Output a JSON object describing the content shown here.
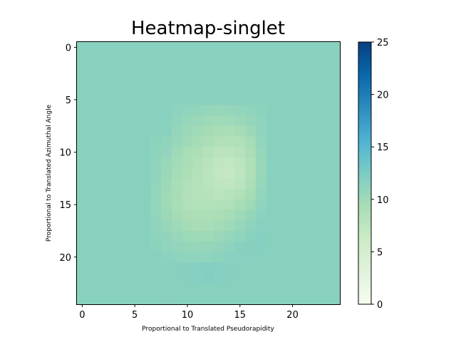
{
  "chart_data": {
    "type": "heatmap",
    "title": "Heatmap-singlet",
    "xlabel": "Proportional to Translated Pseudorapidity",
    "ylabel": "Proportional to Translated Azimuthal Angle",
    "colormap": "GnBu",
    "nx": 25,
    "ny": 25,
    "xlim": [
      -0.5,
      24.5
    ],
    "ylim": [
      24.5,
      -0.5
    ],
    "x_ticks": [
      0,
      5,
      10,
      15,
      20
    ],
    "y_ticks": [
      0,
      5,
      10,
      15,
      20
    ],
    "colorbar": {
      "min": 0,
      "max": 25,
      "ticks": [
        0,
        5,
        10,
        15,
        20,
        25
      ]
    },
    "background_value": 11.5,
    "cells": [
      {
        "row": 6,
        "cols": [
          9,
          10,
          11,
          12,
          13,
          14,
          15,
          16,
          17
        ],
        "values": [
          11.2,
          11.0,
          10.8,
          10.7,
          10.6,
          10.7,
          10.9,
          11.1,
          11.3
        ]
      },
      {
        "row": 7,
        "cols": [
          9,
          10,
          11,
          12,
          13,
          14,
          15,
          16,
          17
        ],
        "values": [
          11.0,
          10.6,
          10.3,
          10.1,
          9.9,
          10.0,
          10.3,
          10.7,
          11.1
        ]
      },
      {
        "row": 8,
        "cols": [
          9,
          10,
          11,
          12,
          13,
          14,
          15,
          16,
          17
        ],
        "values": [
          10.7,
          10.3,
          9.9,
          9.6,
          9.3,
          9.2,
          9.6,
          10.2,
          11.0
        ]
      },
      {
        "row": 9,
        "cols": [
          7,
          8,
          9,
          10,
          11,
          12,
          13,
          14,
          15,
          16,
          17
        ],
        "values": [
          11.3,
          11.1,
          10.5,
          10.0,
          9.5,
          9.0,
          8.6,
          8.5,
          8.8,
          9.5,
          10.8
        ]
      },
      {
        "row": 10,
        "cols": [
          7,
          8,
          9,
          10,
          11,
          12,
          13,
          14,
          15,
          16,
          17
        ],
        "values": [
          11.2,
          10.8,
          10.1,
          9.4,
          8.9,
          8.4,
          7.9,
          7.8,
          8.2,
          9.1,
          10.6
        ]
      },
      {
        "row": 11,
        "cols": [
          7,
          8,
          9,
          10,
          11,
          12,
          13,
          14,
          15,
          16,
          17
        ],
        "values": [
          11.1,
          10.5,
          9.8,
          9.1,
          8.6,
          8.0,
          7.3,
          7.2,
          7.7,
          8.8,
          10.5
        ]
      },
      {
        "row": 12,
        "cols": [
          7,
          8,
          9,
          10,
          11,
          12,
          13,
          14,
          15,
          16,
          17
        ],
        "values": [
          11.0,
          10.3,
          9.6,
          8.9,
          8.4,
          7.8,
          7.0,
          6.9,
          7.5,
          8.7,
          10.4
        ]
      },
      {
        "row": 13,
        "cols": [
          7,
          8,
          9,
          10,
          11,
          12,
          13,
          14,
          15,
          16,
          17
        ],
        "values": [
          10.9,
          10.2,
          9.4,
          8.7,
          8.2,
          7.9,
          7.3,
          7.4,
          7.9,
          9.0,
          10.6
        ]
      },
      {
        "row": 14,
        "cols": [
          7,
          8,
          9,
          10,
          11,
          12,
          13,
          14,
          15,
          16,
          17
        ],
        "values": [
          10.8,
          10.1,
          9.3,
          8.6,
          8.2,
          8.1,
          7.9,
          8.1,
          8.6,
          9.5,
          10.8
        ]
      },
      {
        "row": 15,
        "cols": [
          7,
          8,
          9,
          10,
          11,
          12,
          13,
          14,
          15,
          16,
          17
        ],
        "values": [
          10.8,
          10.1,
          9.3,
          8.7,
          8.4,
          8.4,
          8.5,
          8.8,
          9.3,
          10.1,
          11.1
        ]
      },
      {
        "row": 16,
        "cols": [
          7,
          8,
          9,
          10,
          11,
          12,
          13,
          14,
          15,
          16,
          17
        ],
        "values": [
          10.9,
          10.3,
          9.6,
          9.1,
          8.9,
          8.9,
          9.1,
          9.5,
          10.0,
          10.7,
          11.4
        ]
      },
      {
        "row": 17,
        "cols": [
          7,
          8,
          9,
          10,
          11,
          12,
          13,
          14,
          15,
          16,
          17
        ],
        "values": [
          11.0,
          10.6,
          10.0,
          9.6,
          9.4,
          9.5,
          9.7,
          10.1,
          10.6,
          11.2,
          11.6
        ]
      },
      {
        "row": 18,
        "cols": [
          7,
          8,
          9,
          10,
          11,
          12,
          13,
          14,
          15,
          16,
          17
        ],
        "values": [
          11.2,
          10.9,
          10.5,
          10.2,
          10.0,
          10.1,
          10.3,
          10.7,
          11.1,
          11.5,
          11.8
        ]
      },
      {
        "row": 19,
        "cols": [
          7,
          8,
          9,
          10,
          11,
          12,
          13,
          14,
          15,
          16,
          17
        ],
        "values": [
          11.3,
          11.1,
          10.9,
          10.7,
          10.6,
          10.7,
          10.9,
          11.2,
          11.5,
          11.7,
          11.8
        ]
      },
      {
        "row": 20,
        "cols": [
          8,
          9,
          10,
          11,
          12,
          13,
          14,
          15,
          16
        ],
        "values": [
          11.4,
          11.2,
          11.1,
          11.0,
          11.1,
          11.3,
          11.5,
          11.6,
          11.6
        ]
      },
      {
        "row": 21,
        "cols": [
          9,
          10,
          11,
          12,
          13,
          14,
          15
        ],
        "values": [
          11.6,
          11.7,
          11.8,
          11.9,
          11.8,
          11.7,
          11.6
        ]
      },
      {
        "row": 22,
        "cols": [
          10,
          11,
          12,
          13,
          14
        ],
        "values": [
          11.7,
          11.8,
          12.0,
          11.8,
          11.7
        ]
      }
    ]
  }
}
